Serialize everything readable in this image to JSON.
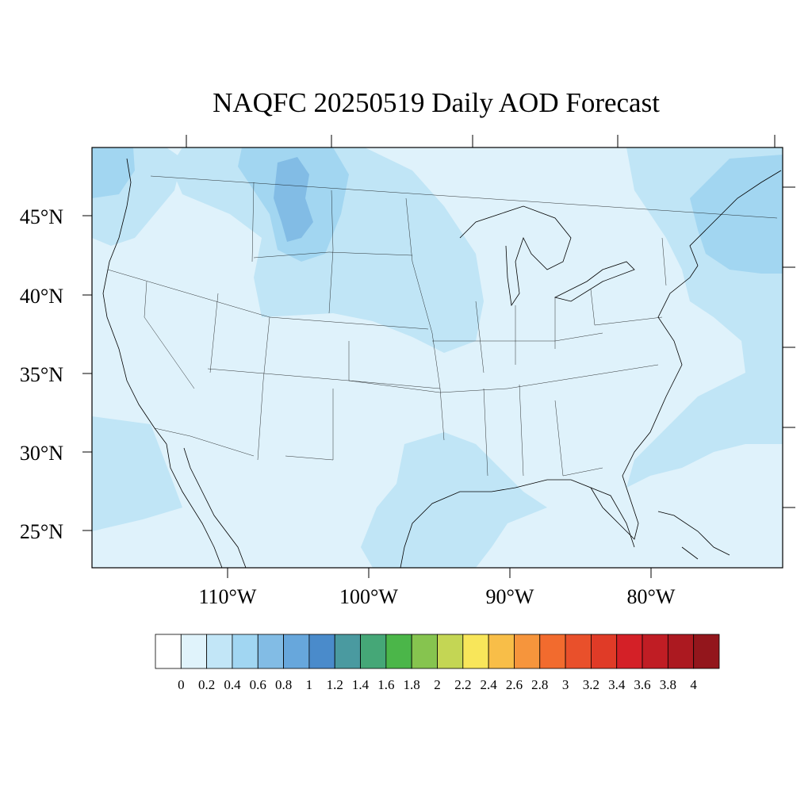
{
  "title": "NAQFC 20250519 Daily AOD Forecast",
  "lat_labels": [
    "45°N",
    "40°N",
    "35°N",
    "30°N",
    "25°N"
  ],
  "lon_labels": [
    "110°W",
    "100°W",
    "90°W",
    "80°W"
  ],
  "colorbar": {
    "labels": [
      "0",
      "0.2",
      "0.4",
      "0.6",
      "0.8",
      "1",
      "1.2",
      "1.4",
      "1.6",
      "1.8",
      "2",
      "2.2",
      "2.4",
      "2.6",
      "2.8",
      "3",
      "3.2",
      "3.4",
      "3.6",
      "3.8",
      "4"
    ],
    "colors": [
      "#ffffff",
      "#e0f3fb",
      "#c2e6f7",
      "#a1d6f2",
      "#82bce5",
      "#67a7dc",
      "#4a8bcb",
      "#4a9aa0",
      "#45a777",
      "#4bb649",
      "#86c44f",
      "#c4d654",
      "#f8e65a",
      "#f8be48",
      "#f6953c",
      "#f26b2e",
      "#e9502b",
      "#e03b27",
      "#d42027",
      "#c01d24",
      "#ac1920",
      "#93161c"
    ]
  },
  "colors": {
    "background_aod": "#dff2fb",
    "aod_0_4_0_6": "#c0e5f6",
    "aod_0_6_0_8": "#a2d6f1",
    "aod_0_8_1": "#82bce5",
    "borders": "#000000"
  }
}
